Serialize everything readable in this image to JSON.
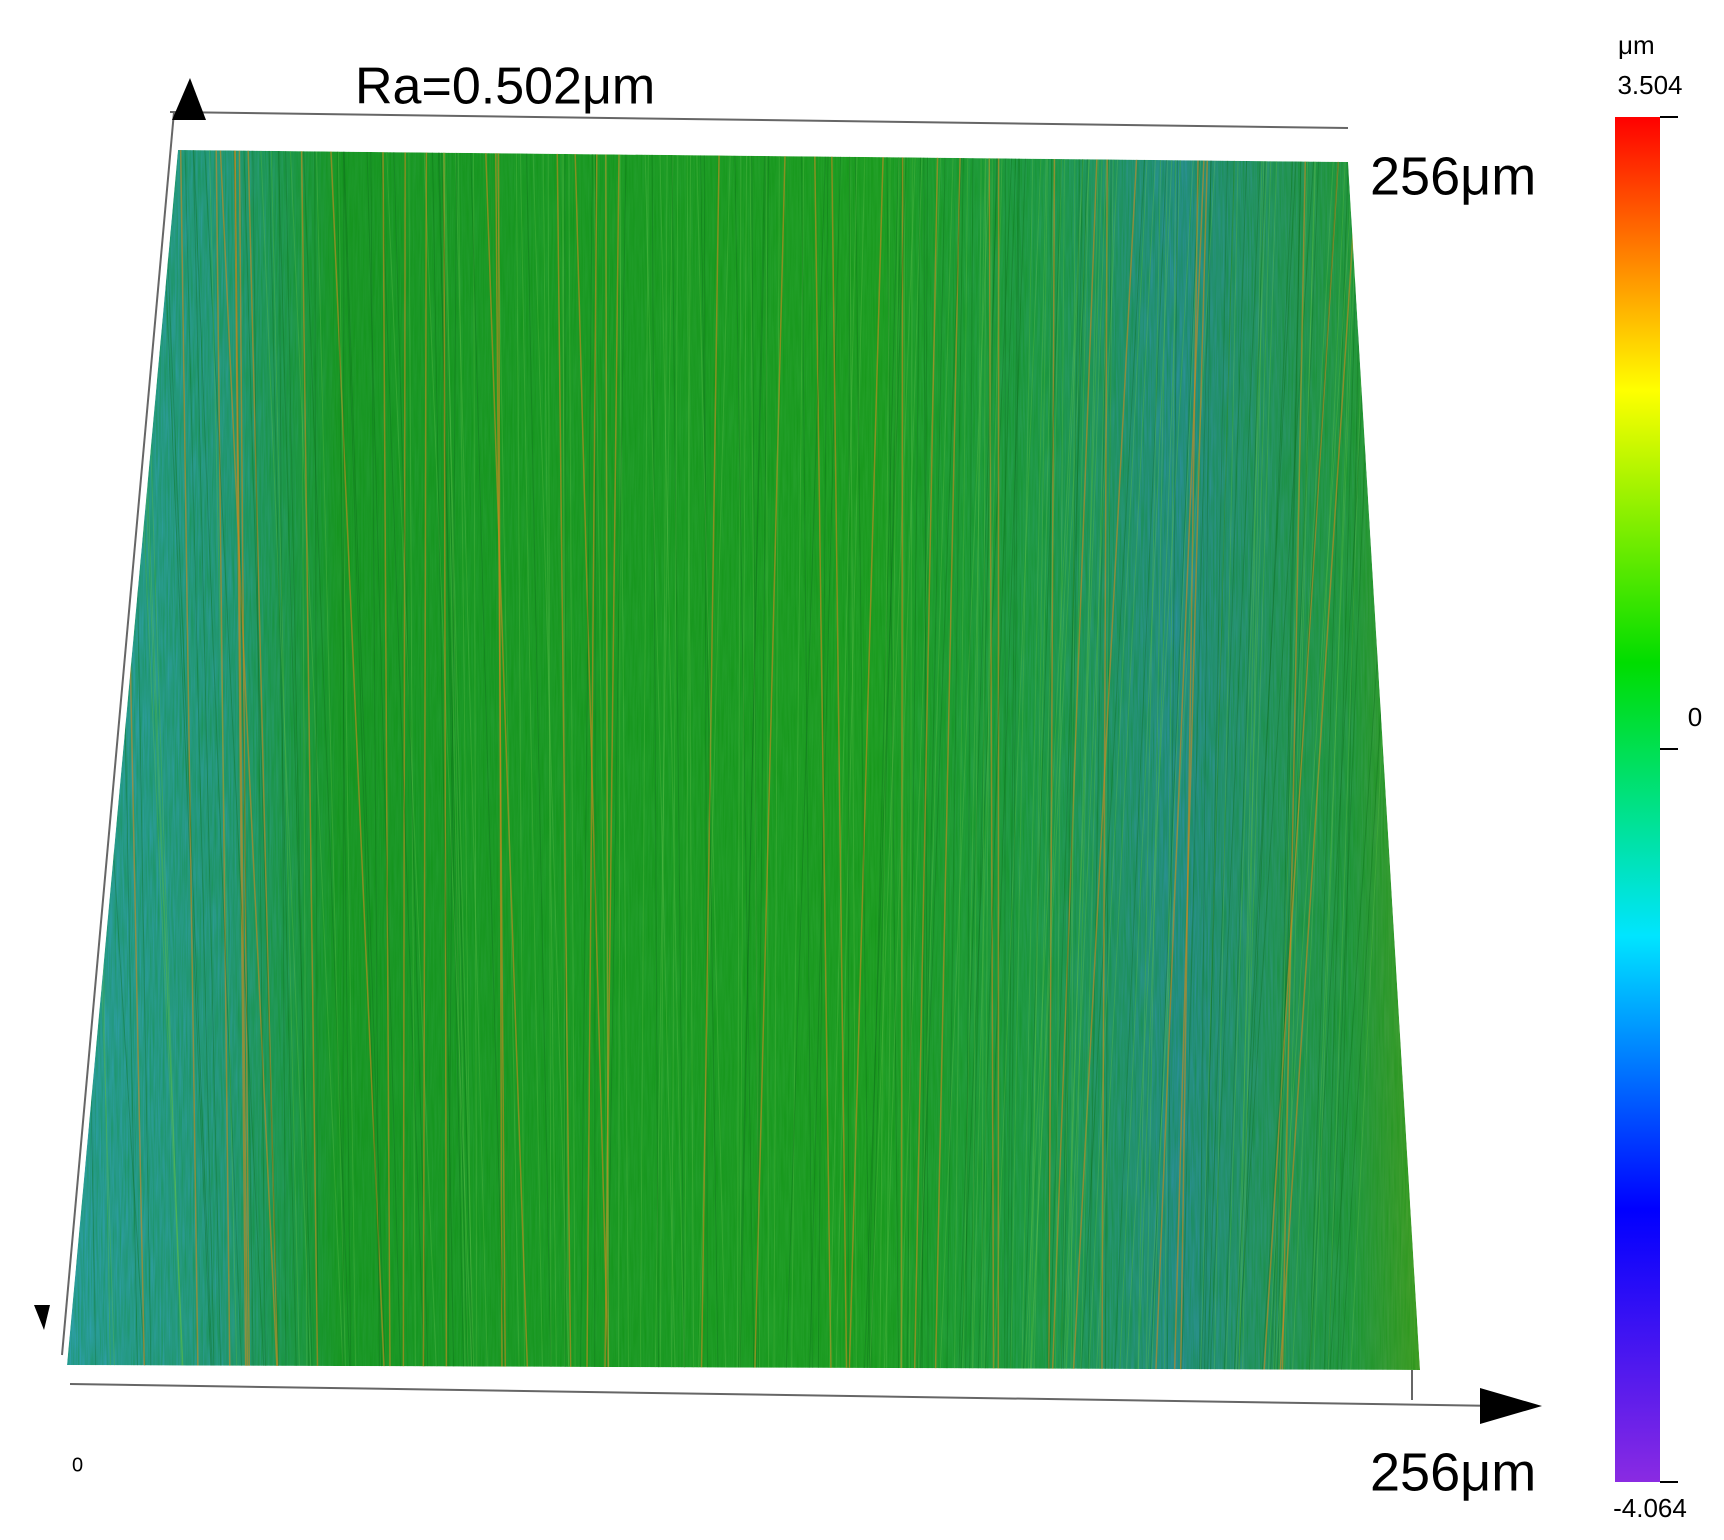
{
  "chart_data": {
    "type": "surface",
    "title": "Ra=0.502μm",
    "x_label": "256μm",
    "y_label": "256μm",
    "origin_label": "0",
    "colorbar": {
      "label": "μm",
      "lim": [
        -4.064,
        3.504
      ],
      "ticks": [
        3.504,
        0,
        -4.064
      ],
      "colormap": [
        "#8a2be2",
        "#0000ff",
        "#00e5ff",
        "#00dd00",
        "#ffff00",
        "#ff0000"
      ]
    }
  }
}
